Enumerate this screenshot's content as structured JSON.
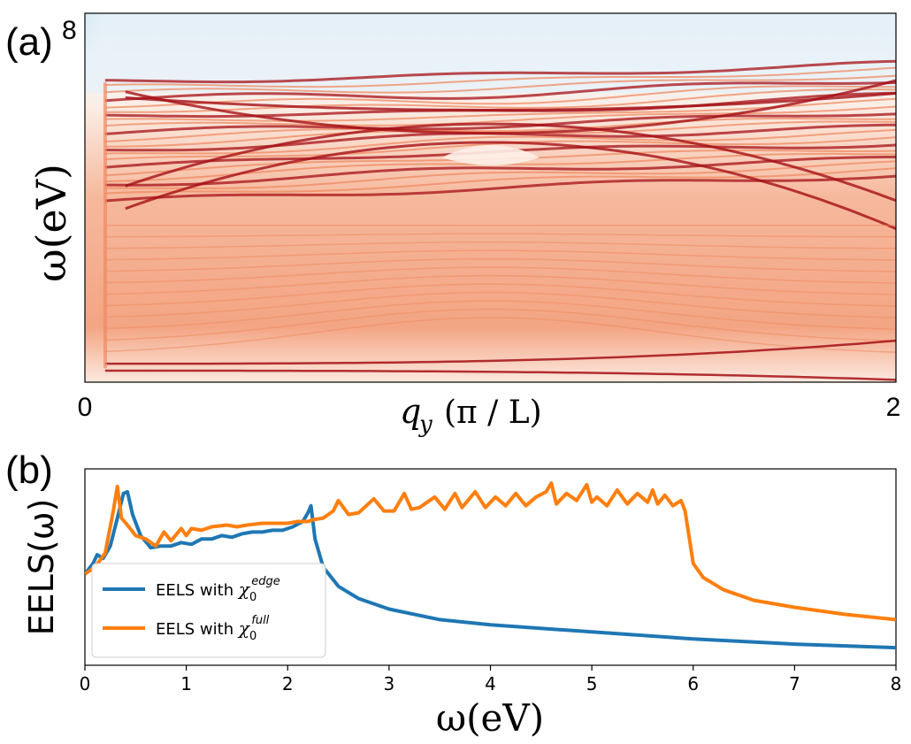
{
  "panel_a": {
    "label": "(a)",
    "ytop_label": "8",
    "ylabel": "ω(eV)",
    "xlabel_symbol": "q",
    "xlabel_sub": "y",
    "xlabel_unit": "(π / L)",
    "xmin_label": "0",
    "xmax_label": "2"
  },
  "panel_b": {
    "label": "(b)"
  },
  "colors": {
    "blue": "#1f77b4",
    "orange": "#ff7f0e",
    "heat_dark": "#a50f15",
    "heat_mid": "#ef8a62",
    "heat_light": "#fbe2d4",
    "cold_dark": "#08519c",
    "cold_light": "#deebf7"
  },
  "chart_data": [
    {
      "type": "heatmap",
      "title": "",
      "xlabel": "q_y (π / L)",
      "ylabel": "ω(eV)",
      "xlim": [
        0,
        2
      ],
      "ylim": [
        0,
        8
      ],
      "colormap": "RdBu_r",
      "band_region_ev": [
        0.25,
        6.0
      ],
      "band_crossing": {
        "q": 1.0,
        "omega": 5.5
      }
    },
    {
      "type": "line",
      "title": "",
      "xlabel": "ω(eV)",
      "ylabel": "EELS(ω)",
      "xlim": [
        0,
        8
      ],
      "ylim": [
        0,
        1
      ],
      "xticks": [
        0,
        1,
        2,
        3,
        4,
        5,
        6,
        7,
        8
      ],
      "legend_position": "lower-left",
      "series": [
        {
          "name": "EELS with χ0^edge",
          "legend_prefix": "EELS with ",
          "legend_symbol": "χ",
          "legend_sub": "0",
          "legend_sup": "edge",
          "color": "#1f77b4",
          "x": [
            0,
            0.08,
            0.12,
            0.18,
            0.25,
            0.32,
            0.38,
            0.42,
            0.47,
            0.55,
            0.65,
            0.75,
            0.85,
            0.95,
            1.05,
            1.15,
            1.25,
            1.35,
            1.45,
            1.55,
            1.65,
            1.75,
            1.85,
            1.95,
            2.05,
            2.15,
            2.2,
            2.23,
            2.27,
            2.35,
            2.5,
            2.7,
            3.0,
            3.5,
            4.0,
            5.0,
            6.0,
            7.0,
            8.0
          ],
          "y": [
            0.46,
            0.52,
            0.57,
            0.55,
            0.62,
            0.78,
            0.92,
            0.93,
            0.8,
            0.68,
            0.61,
            0.62,
            0.62,
            0.64,
            0.63,
            0.66,
            0.66,
            0.68,
            0.67,
            0.69,
            0.7,
            0.7,
            0.71,
            0.71,
            0.73,
            0.76,
            0.81,
            0.85,
            0.66,
            0.5,
            0.39,
            0.32,
            0.26,
            0.2,
            0.17,
            0.13,
            0.09,
            0.06,
            0.04
          ]
        },
        {
          "name": "EELS with χ0^full",
          "legend_prefix": "EELS with ",
          "legend_symbol": "χ",
          "legend_sub": "0",
          "legend_sup": "full",
          "color": "#ff7f0e",
          "x": [
            0,
            0.1,
            0.2,
            0.28,
            0.32,
            0.36,
            0.42,
            0.5,
            0.6,
            0.7,
            0.78,
            0.85,
            0.95,
            1.0,
            1.05,
            1.15,
            1.25,
            1.4,
            1.5,
            1.6,
            1.75,
            1.9,
            2.0,
            2.1,
            2.2,
            2.25,
            2.35,
            2.45,
            2.5,
            2.6,
            2.7,
            2.85,
            2.95,
            3.05,
            3.15,
            3.22,
            3.3,
            3.45,
            3.55,
            3.65,
            3.72,
            3.85,
            3.95,
            4.05,
            4.15,
            4.25,
            4.35,
            4.45,
            4.55,
            4.6,
            4.65,
            4.75,
            4.85,
            4.95,
            5.0,
            5.05,
            5.15,
            5.25,
            5.35,
            5.45,
            5.55,
            5.6,
            5.65,
            5.72,
            5.8,
            5.88,
            5.92,
            6.0,
            6.1,
            6.3,
            6.6,
            7.0,
            7.5,
            8.0
          ],
          "y": [
            0.46,
            0.5,
            0.58,
            0.82,
            0.96,
            0.78,
            0.74,
            0.68,
            0.66,
            0.62,
            0.7,
            0.65,
            0.72,
            0.68,
            0.72,
            0.71,
            0.73,
            0.74,
            0.73,
            0.74,
            0.75,
            0.75,
            0.75,
            0.76,
            0.76,
            0.77,
            0.78,
            0.82,
            0.88,
            0.8,
            0.81,
            0.89,
            0.82,
            0.82,
            0.92,
            0.83,
            0.84,
            0.9,
            0.83,
            0.92,
            0.84,
            0.93,
            0.84,
            0.9,
            0.85,
            0.92,
            0.85,
            0.9,
            0.93,
            0.98,
            0.86,
            0.92,
            0.88,
            0.97,
            0.87,
            0.9,
            0.85,
            0.94,
            0.86,
            0.92,
            0.87,
            0.94,
            0.86,
            0.91,
            0.85,
            0.88,
            0.82,
            0.52,
            0.44,
            0.37,
            0.31,
            0.27,
            0.23,
            0.2
          ]
        }
      ]
    }
  ]
}
